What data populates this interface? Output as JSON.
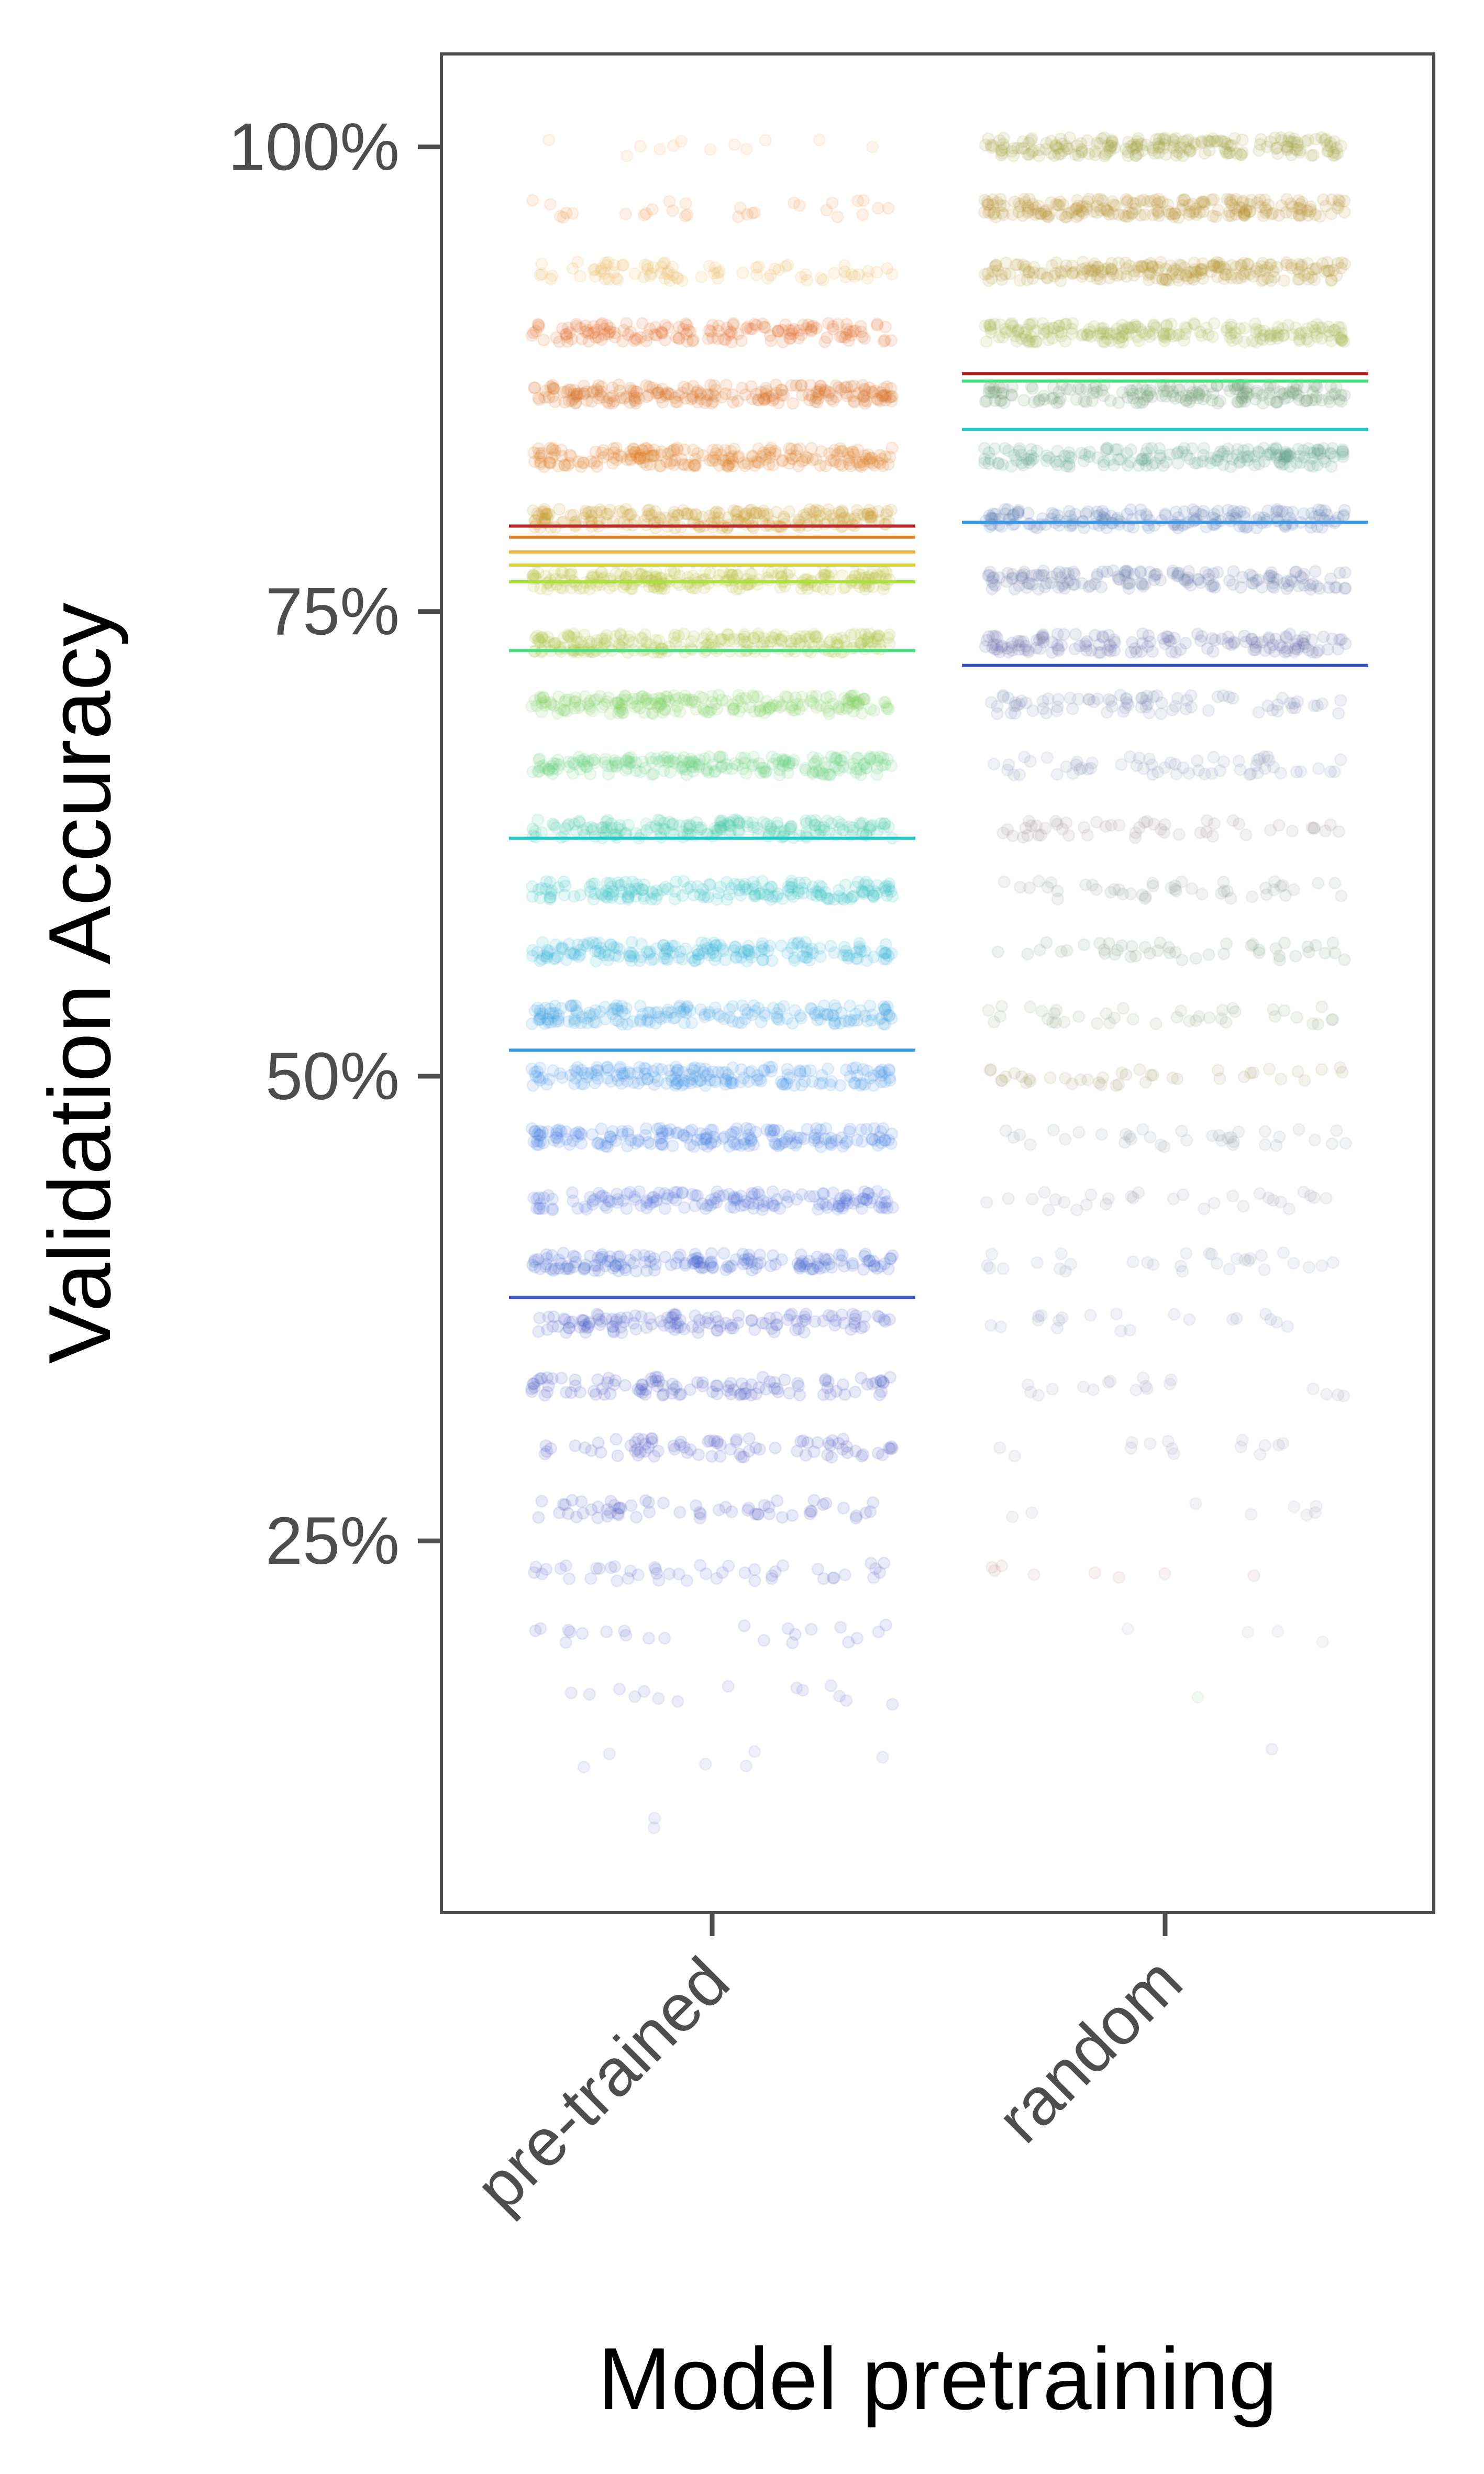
{
  "chart_data": {
    "type": "scatter",
    "xlabel": "Model pretraining",
    "ylabel": "Validation Accuracy",
    "categories": [
      "pre-trained",
      "random"
    ],
    "ylim": [
      5,
      105
    ],
    "yticks": [
      {
        "value": 25,
        "label": "25%"
      },
      {
        "value": 50,
        "label": "50%"
      },
      {
        "value": 75,
        "label": "75%"
      },
      {
        "value": 100,
        "label": "100%"
      }
    ],
    "grid": false,
    "legend": "none",
    "point_opacity": 0.13,
    "groups": [
      {
        "category": "pre-trained",
        "points": [
          {
            "y": 100.0,
            "count": 12,
            "color": "#f4a95c"
          },
          {
            "y": 96.7,
            "count": 30,
            "color": "#f08a3c"
          },
          {
            "y": 93.3,
            "count": 80,
            "color": "#e8b04a"
          },
          {
            "y": 90.0,
            "count": 160,
            "color": "#e06820"
          },
          {
            "y": 86.7,
            "count": 220,
            "color": "#d9701e"
          },
          {
            "y": 83.3,
            "count": 220,
            "color": "#dd7a20"
          },
          {
            "y": 80.0,
            "count": 220,
            "color": "#c99a2a"
          },
          {
            "y": 76.7,
            "count": 220,
            "color": "#b8c036"
          },
          {
            "y": 73.3,
            "count": 220,
            "color": "#a8c43c"
          },
          {
            "y": 70.0,
            "count": 200,
            "color": "#7fcf5a"
          },
          {
            "y": 66.7,
            "count": 200,
            "color": "#62d27a"
          },
          {
            "y": 63.3,
            "count": 180,
            "color": "#3ec9a0"
          },
          {
            "y": 60.0,
            "count": 180,
            "color": "#2fbfc4"
          },
          {
            "y": 56.7,
            "count": 180,
            "color": "#2fb1d8"
          },
          {
            "y": 53.3,
            "count": 180,
            "color": "#3aa3e2"
          },
          {
            "y": 50.0,
            "count": 180,
            "color": "#3d8fe6"
          },
          {
            "y": 46.7,
            "count": 180,
            "color": "#3f7ee0"
          },
          {
            "y": 43.3,
            "count": 160,
            "color": "#4a6ed8"
          },
          {
            "y": 40.0,
            "count": 160,
            "color": "#3f62d0"
          },
          {
            "y": 36.7,
            "count": 130,
            "color": "#4a5cc8"
          },
          {
            "y": 33.3,
            "count": 110,
            "color": "#4656c4"
          },
          {
            "y": 30.0,
            "count": 80,
            "color": "#4a55c2"
          },
          {
            "y": 26.7,
            "count": 60,
            "color": "#4a55c2"
          },
          {
            "y": 23.3,
            "count": 45,
            "color": "#5a62c8"
          },
          {
            "y": 20.0,
            "count": 22,
            "color": "#5a62c8"
          },
          {
            "y": 16.7,
            "count": 14,
            "color": "#6a70d0"
          },
          {
            "y": 13.3,
            "count": 6,
            "color": "#7a80d8"
          },
          {
            "y": 10.0,
            "count": 2,
            "color": "#7a80d8"
          }
        ],
        "means": [
          {
            "y": 79.6,
            "color": "#b22222"
          },
          {
            "y": 79.0,
            "color": "#e8862c"
          },
          {
            "y": 78.2,
            "color": "#f2b23a"
          },
          {
            "y": 77.5,
            "color": "#d8d23a"
          },
          {
            "y": 76.6,
            "color": "#a8e03c"
          },
          {
            "y": 72.9,
            "color": "#48e080"
          },
          {
            "y": 62.8,
            "color": "#20c8c8"
          },
          {
            "y": 51.4,
            "color": "#3a98e6"
          },
          {
            "y": 38.1,
            "color": "#3a56c4"
          }
        ]
      },
      {
        "category": "random",
        "points": [
          {
            "y": 100.0,
            "count": 200,
            "color": "#a0a040"
          },
          {
            "y": 96.7,
            "count": 220,
            "color": "#b89030"
          },
          {
            "y": 93.3,
            "count": 220,
            "color": "#b89838"
          },
          {
            "y": 90.0,
            "count": 200,
            "color": "#a0b048"
          },
          {
            "y": 86.7,
            "count": 180,
            "color": "#6a9a70"
          },
          {
            "y": 83.3,
            "count": 180,
            "color": "#5aa088"
          },
          {
            "y": 80.0,
            "count": 180,
            "color": "#5a7ab0"
          },
          {
            "y": 76.7,
            "count": 160,
            "color": "#6a7aa8"
          },
          {
            "y": 73.3,
            "count": 150,
            "color": "#6a70a8"
          },
          {
            "y": 70.0,
            "count": 80,
            "color": "#7a88b0"
          },
          {
            "y": 66.7,
            "count": 60,
            "color": "#8090b0"
          },
          {
            "y": 63.3,
            "count": 50,
            "color": "#9a8a90"
          },
          {
            "y": 60.0,
            "count": 45,
            "color": "#8a9a90"
          },
          {
            "y": 56.7,
            "count": 45,
            "color": "#7a9a80"
          },
          {
            "y": 53.3,
            "count": 40,
            "color": "#90a080"
          },
          {
            "y": 50.0,
            "count": 40,
            "color": "#a09a70"
          },
          {
            "y": 46.7,
            "count": 35,
            "color": "#8a9aa0"
          },
          {
            "y": 43.3,
            "count": 30,
            "color": "#9a90a0"
          },
          {
            "y": 40.0,
            "count": 30,
            "color": "#8a98b0"
          },
          {
            "y": 36.7,
            "count": 20,
            "color": "#8a94b8"
          },
          {
            "y": 33.3,
            "count": 18,
            "color": "#9a9ab8"
          },
          {
            "y": 30.0,
            "count": 14,
            "color": "#9a9ab8"
          },
          {
            "y": 26.7,
            "count": 8,
            "color": "#a0a0b8"
          },
          {
            "y": 23.3,
            "count": 8,
            "color": "#c09090"
          },
          {
            "y": 20.0,
            "count": 4,
            "color": "#b0b0c0"
          },
          {
            "y": 16.7,
            "count": 1,
            "color": "#90d0a0"
          },
          {
            "y": 13.3,
            "count": 1,
            "color": "#8a8ac0"
          }
        ],
        "means": [
          {
            "y": 87.8,
            "color": "#b22222"
          },
          {
            "y": 87.4,
            "color": "#48e080"
          },
          {
            "y": 84.8,
            "color": "#20c8c8"
          },
          {
            "y": 79.8,
            "color": "#3a98e6"
          },
          {
            "y": 72.1,
            "color": "#3a56c4"
          }
        ]
      }
    ]
  }
}
